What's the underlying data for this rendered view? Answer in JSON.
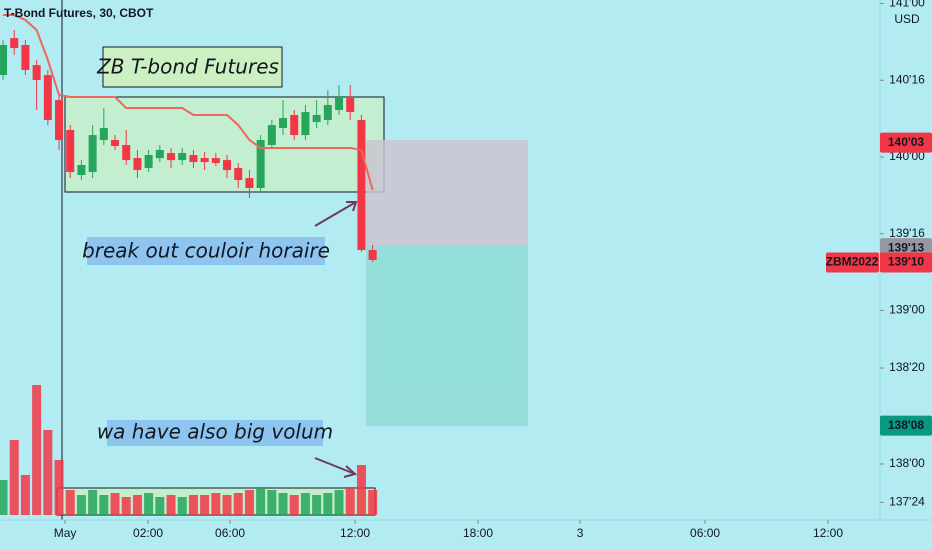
{
  "chart_data": {
    "type": "candlestick",
    "title": "T-Bond Futures, 30, CBOT",
    "currency": "USD",
    "symbol": "ZBM2022",
    "up_color": "#26a65b",
    "down_color": "#f23645",
    "x": [
      0,
      1,
      2,
      3,
      4,
      5,
      6,
      7,
      8,
      9,
      10,
      11,
      12,
      13,
      14,
      15,
      16,
      17,
      18,
      19,
      20,
      21,
      22,
      23,
      24,
      25,
      26,
      27,
      28,
      29,
      30,
      31,
      32,
      33
    ],
    "open": [
      140.534,
      140.775,
      140.73,
      140.599,
      140.534,
      140.371,
      140.176,
      139.883,
      139.902,
      140.111,
      140.111,
      140.078,
      139.993,
      139.928,
      139.993,
      140.026,
      139.98,
      140.013,
      139.993,
      139.993,
      139.98,
      139.928,
      139.863,
      139.798,
      140.078,
      140.189,
      140.274,
      140.143,
      140.228,
      140.241,
      140.306,
      140.384,
      140.241,
      139.394
    ],
    "close": [
      140.73,
      140.71,
      140.567,
      140.502,
      140.241,
      140.111,
      139.902,
      139.948,
      140.143,
      140.189,
      140.072,
      139.98,
      139.915,
      140.013,
      140.046,
      139.98,
      140.026,
      139.967,
      139.967,
      139.961,
      139.915,
      139.85,
      139.798,
      140.111,
      140.208,
      140.254,
      140.143,
      140.293,
      140.274,
      140.339,
      140.391,
      140.293,
      139.394,
      139.329
    ],
    "high": [
      140.762,
      140.827,
      140.762,
      140.632,
      140.567,
      140.404,
      140.208,
      139.98,
      140.208,
      140.319,
      140.143,
      140.176,
      140.046,
      140.046,
      140.078,
      140.059,
      140.059,
      140.046,
      140.033,
      140.026,
      140.013,
      139.961,
      139.915,
      140.143,
      140.241,
      140.371,
      140.306,
      140.339,
      140.371,
      140.436,
      140.469,
      140.469,
      140.274,
      139.427
    ],
    "low": [
      140.502,
      140.665,
      140.534,
      140.306,
      140.208,
      140.046,
      139.863,
      139.85,
      139.863,
      140.078,
      140.046,
      139.948,
      139.863,
      139.902,
      139.967,
      139.928,
      139.948,
      139.928,
      139.915,
      139.941,
      139.863,
      139.798,
      139.733,
      139.772,
      140.059,
      140.143,
      140.111,
      140.111,
      140.189,
      140.208,
      140.274,
      140.241,
      139.381,
      139.316
    ],
    "volume": [
      35,
      75,
      40,
      130,
      85,
      55,
      25,
      20,
      25,
      20,
      22,
      18,
      20,
      22,
      18,
      20,
      18,
      20,
      20,
      22,
      20,
      22,
      25,
      28,
      25,
      22,
      20,
      22,
      20,
      22,
      25,
      28,
      50,
      25
    ],
    "vlim": [
      0,
      140
    ],
    "indicator": {
      "color": "#f0665a",
      "values": [
        140.925,
        140.925,
        140.893,
        140.827,
        140.632,
        140.404,
        140.391,
        140.391,
        140.391,
        140.391,
        140.391,
        140.319,
        140.319,
        140.319,
        140.319,
        140.319,
        140.319,
        140.274,
        140.274,
        140.274,
        140.274,
        140.208,
        140.111,
        140.059,
        140.059,
        140.059,
        140.059,
        140.059,
        140.059,
        140.059,
        140.059,
        140.059,
        140.046,
        139.785
      ]
    },
    "xlim": [
      -0.27,
      78.3
    ],
    "xticks": [
      {
        "value": 5.54,
        "label": "May"
      },
      {
        "value": 12.95,
        "label": "02:00"
      },
      {
        "value": 20.27,
        "label": "06:00"
      },
      {
        "value": 31.43,
        "label": "12:00"
      },
      {
        "value": 42.41,
        "label": "18:00"
      },
      {
        "value": 51.52,
        "label": "3"
      },
      {
        "value": 62.68,
        "label": "06:00"
      },
      {
        "value": 73.66,
        "label": "12:00"
      }
    ],
    "ylim": [
      137.635,
      141.023
    ],
    "yticks": [
      {
        "value": 141,
        "label": "141'00"
      },
      {
        "value": 140.5,
        "label": "140'16"
      },
      {
        "value": 140,
        "label": "140'00"
      },
      {
        "value": 139.5,
        "label": "139'16"
      },
      {
        "value": 139,
        "label": "139'00"
      },
      {
        "value": 138.625,
        "label": "138'20"
      },
      {
        "value": 138,
        "label": "138'00"
      },
      {
        "value": 137.75,
        "label": "137'24"
      }
    ],
    "price_labels": [
      {
        "value": 140.09375,
        "label": "140'03",
        "color": "#f23645"
      },
      {
        "value": 139.40625,
        "label": "139'13",
        "color": "#9598a1"
      },
      {
        "value": 139.3125,
        "label": "139'10",
        "color": "#f23645"
      },
      {
        "value": 138.25,
        "label": "138'08",
        "color": "#089981"
      }
    ],
    "annotations": [
      "ZB T-bond Futures",
      "break out couloir horaire",
      "wa have also big volum"
    ]
  }
}
